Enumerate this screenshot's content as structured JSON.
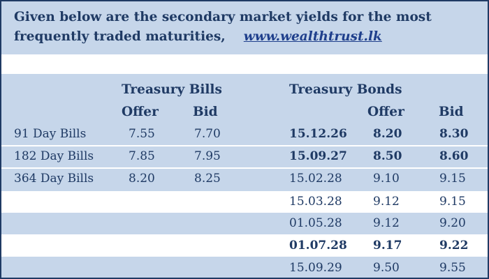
{
  "header": {
    "line1": "Given below are the secondary market yields for the most",
    "line2": "frequently traded maturities,",
    "link": "www.wealthtrust.lk"
  },
  "table": {
    "bills_title": "Treasury Bills",
    "bonds_title": "Treasury Bonds",
    "offer_label": "Offer",
    "bid_label": "Bid",
    "bills": [
      {
        "label": "91 Day Bills",
        "offer": "7.55",
        "bid": "7.70"
      },
      {
        "label": "182 Day Bills",
        "offer": "7.85",
        "bid": "7.95"
      },
      {
        "label": "364 Day Bills",
        "offer": "8.20",
        "bid": "8.25"
      }
    ],
    "bonds": [
      {
        "maturity": "15.12.26",
        "offer": "8.20",
        "bid": "8.30",
        "bold": true
      },
      {
        "maturity": "15.09.27",
        "offer": "8.50",
        "bid": "8.60",
        "bold": true
      },
      {
        "maturity": "15.02.28",
        "offer": "9.10",
        "bid": "9.15",
        "bold": false
      },
      {
        "maturity": "15.03.28",
        "offer": "9.12",
        "bid": "9.15",
        "bold": false
      },
      {
        "maturity": "01.05.28",
        "offer": "9.12",
        "bid": "9.20",
        "bold": false
      },
      {
        "maturity": "01.07.28",
        "offer": "9.17",
        "bid": "9.22",
        "bold": true
      },
      {
        "maturity": "15.09.29",
        "offer": "9.50",
        "bid": "9.55",
        "bold": false
      }
    ]
  }
}
